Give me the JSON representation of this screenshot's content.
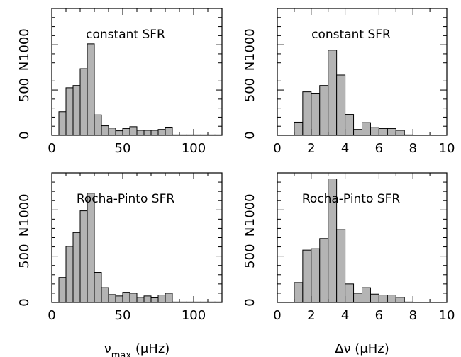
{
  "chart_data": [
    {
      "type": "bar",
      "panel": "top-left",
      "annotation": "constant SFR",
      "ylabel": "N",
      "xlabel": "",
      "xlim": [
        0,
        120
      ],
      "ylim": [
        0,
        1400
      ],
      "xticks": [
        0,
        50,
        100
      ],
      "yticks": [
        0,
        500,
        1000
      ],
      "bin_width": 5,
      "bin_starts": [
        5,
        10,
        15,
        20,
        25,
        30,
        35,
        40,
        45,
        50,
        55,
        60,
        65,
        70,
        75,
        80,
        85,
        90,
        95,
        100,
        105,
        110,
        115
      ],
      "values": [
        260,
        525,
        550,
        735,
        1010,
        225,
        105,
        80,
        50,
        75,
        95,
        55,
        55,
        55,
        65,
        90,
        5,
        5,
        5,
        5,
        5,
        5,
        5
      ]
    },
    {
      "type": "bar",
      "panel": "top-right",
      "annotation": "constant SFR",
      "ylabel": "N",
      "xlabel": "",
      "xlim": [
        0,
        10
      ],
      "ylim": [
        0,
        1400
      ],
      "xticks": [
        0,
        2,
        4,
        6,
        8,
        10
      ],
      "yticks": [
        0,
        500,
        1000
      ],
      "bin_width": 0.5,
      "bin_starts": [
        0,
        0.5,
        1.0,
        1.5,
        2.0,
        2.5,
        3.0,
        3.5,
        4.0,
        4.5,
        5.0,
        5.5,
        6.0,
        6.5,
        7.0,
        7.5,
        8.0,
        8.5,
        9.0,
        9.5
      ],
      "values": [
        0,
        0,
        145,
        480,
        465,
        550,
        940,
        665,
        230,
        65,
        140,
        85,
        75,
        75,
        55,
        5,
        0,
        0,
        0,
        0
      ]
    },
    {
      "type": "bar",
      "panel": "bottom-left",
      "annotation": "Rocha-Pinto SFR",
      "ylabel": "N",
      "xlabel": "ν_max (μHz)",
      "xlim": [
        0,
        120
      ],
      "ylim": [
        0,
        1400
      ],
      "xticks": [
        0,
        50,
        100
      ],
      "yticks": [
        0,
        500,
        1000
      ],
      "bin_width": 5,
      "bin_starts": [
        5,
        10,
        15,
        20,
        25,
        30,
        35,
        40,
        45,
        50,
        55,
        60,
        65,
        70,
        75,
        80,
        85,
        90,
        95,
        100,
        105,
        110,
        115
      ],
      "values": [
        270,
        605,
        755,
        990,
        1180,
        325,
        160,
        85,
        70,
        110,
        100,
        55,
        70,
        50,
        80,
        100,
        5,
        5,
        5,
        5,
        5,
        5,
        5
      ]
    },
    {
      "type": "bar",
      "panel": "bottom-right",
      "annotation": "Rocha-Pinto SFR",
      "ylabel": "N",
      "xlabel": "Δν (μHz)",
      "xlim": [
        0,
        10
      ],
      "ylim": [
        0,
        1400
      ],
      "xticks": [
        0,
        2,
        4,
        6,
        8,
        10
      ],
      "yticks": [
        0,
        500,
        1000
      ],
      "bin_width": 0.5,
      "bin_starts": [
        0,
        0.5,
        1.0,
        1.5,
        2.0,
        2.5,
        3.0,
        3.5,
        4.0,
        4.5,
        5.0,
        5.5,
        6.0,
        6.5,
        7.0,
        7.5,
        8.0,
        8.5,
        9.0,
        9.5
      ],
      "values": [
        0,
        0,
        215,
        565,
        580,
        690,
        1335,
        790,
        200,
        100,
        160,
        90,
        80,
        80,
        55,
        5,
        0,
        0,
        0,
        0
      ]
    }
  ],
  "style": {
    "bar_fill": "#b4b4b4",
    "bar_stroke": "#000000",
    "axis_color": "#000000"
  }
}
